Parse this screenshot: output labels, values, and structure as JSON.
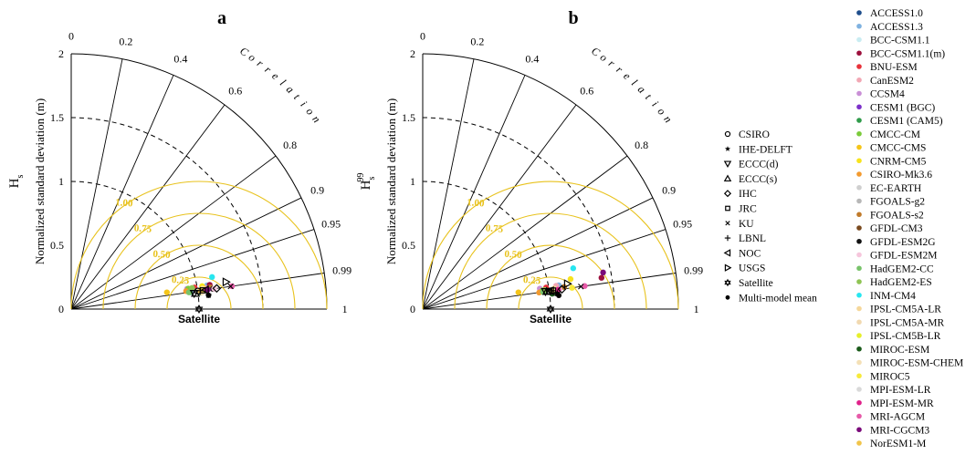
{
  "chart_data": [
    {
      "type": "taylor-diagram",
      "panel_label": "a",
      "ylabel": "Normalized standard deviation (m)",
      "variable_label": "H",
      "variable_sub": "s",
      "variable_sup": "",
      "correlation_label": "Correlation",
      "reference_label": "Satellite",
      "std_ticks": [
        "0",
        "0.5",
        "1",
        "1.5",
        "2"
      ],
      "corr_ticks": [
        "0",
        "0.2",
        "0.4",
        "0.6",
        "0.8",
        "0.9",
        "0.95",
        "0.99",
        "1"
      ],
      "crmsd_labels": [
        "0.25",
        "0.50",
        "0.75",
        "1.00"
      ],
      "points": [
        {
          "model": "ACCESS1.0",
          "std": 1.05,
          "corr": 0.99
        },
        {
          "model": "ACCESS1.3",
          "std": 1.08,
          "corr": 0.985
        },
        {
          "model": "BCC-CSM1.1",
          "std": 1.0,
          "corr": 0.99
        },
        {
          "model": "BCC-CSM1.1(m)",
          "std": 1.1,
          "corr": 0.985
        },
        {
          "model": "BNU-ESM",
          "std": 0.98,
          "corr": 0.985
        },
        {
          "model": "CanESM2",
          "std": 1.06,
          "corr": 0.988
        },
        {
          "model": "CCSM4",
          "std": 0.92,
          "corr": 0.985
        },
        {
          "model": "CESM1 (BGC)",
          "std": 0.95,
          "corr": 0.99
        },
        {
          "model": "CESM1 (CAM5)",
          "std": 0.94,
          "corr": 0.99
        },
        {
          "model": "CMCC-CM",
          "std": 0.93,
          "corr": 0.985
        },
        {
          "model": "CMCC-CMS",
          "std": 0.76,
          "corr": 0.985
        },
        {
          "model": "CNRM-CM5",
          "std": 1.04,
          "corr": 0.985
        },
        {
          "model": "CSIRO-Mk3.6",
          "std": 0.91,
          "corr": 0.988
        },
        {
          "model": "EC-EARTH",
          "std": 1.02,
          "corr": 0.99
        },
        {
          "model": "FGOALS-g2",
          "std": 0.99,
          "corr": 0.99
        },
        {
          "model": "FGOALS-s2",
          "std": 1.1,
          "corr": 0.988
        },
        {
          "model": "GFDL-CM3",
          "std": 1.03,
          "corr": 0.99
        },
        {
          "model": "GFDL-ESM2G",
          "std": 1.12,
          "corr": 0.99
        },
        {
          "model": "GFDL-ESM2M",
          "std": 1.13,
          "corr": 0.99
        },
        {
          "model": "HadGEM2-CC",
          "std": 0.93,
          "corr": 0.99
        },
        {
          "model": "HadGEM2-ES",
          "std": 0.96,
          "corr": 0.985
        },
        {
          "model": "INM-CM4",
          "std": 1.13,
          "corr": 0.975
        },
        {
          "model": "IPSL-CM5A-LR",
          "std": 1.04,
          "corr": 0.988
        },
        {
          "model": "IPSL-CM5A-MR",
          "std": 1.05,
          "corr": 0.99
        },
        {
          "model": "IPSL-CM5B-LR",
          "std": 1.01,
          "corr": 0.99
        },
        {
          "model": "MIROC-ESM",
          "std": 1.02,
          "corr": 0.992
        },
        {
          "model": "MIROC-ESM-CHEM",
          "std": 1.03,
          "corr": 0.992
        },
        {
          "model": "MIROC5",
          "std": 1.06,
          "corr": 0.99
        },
        {
          "model": "MPI-ESM-LR",
          "std": 1.0,
          "corr": 0.99
        },
        {
          "model": "MPI-ESM-MR",
          "std": 1.07,
          "corr": 0.99
        },
        {
          "model": "MRI-AGCM",
          "std": 1.27,
          "corr": 0.99
        },
        {
          "model": "MRI-CGCM3",
          "std": 1.08,
          "corr": 0.99
        },
        {
          "model": "NorESM1-M",
          "std": 1.02,
          "corr": 0.99
        }
      ],
      "products": [
        {
          "name": "CSIRO",
          "std": 1.0,
          "corr": 0.99
        },
        {
          "name": "IHE-DELFT",
          "std": 1.08,
          "corr": 0.995
        },
        {
          "name": "ECCC(d)",
          "std": 0.97,
          "corr": 0.992
        },
        {
          "name": "ECCC(s)",
          "std": 0.98,
          "corr": 0.992
        },
        {
          "name": "IHC",
          "std": 1.15,
          "corr": 0.99
        },
        {
          "name": "JRC",
          "std": 1.04,
          "corr": 0.99
        },
        {
          "name": "KU",
          "std": 1.26,
          "corr": 0.99
        },
        {
          "name": "LBNL",
          "std": 1.02,
          "corr": 0.99
        },
        {
          "name": "NOC",
          "std": 1.06,
          "corr": 0.99
        },
        {
          "name": "USGS",
          "std": 1.23,
          "corr": 0.985
        },
        {
          "name": "Satellite",
          "std": 1.0,
          "corr": 1.0
        },
        {
          "name": "Multi-model mean",
          "std": 1.08,
          "corr": 0.995
        }
      ]
    },
    {
      "type": "taylor-diagram",
      "panel_label": "b",
      "ylabel": "Normalized standard deviation (m)",
      "variable_label": "H",
      "variable_sub": "s",
      "variable_sup": "99",
      "correlation_label": "Correlation",
      "reference_label": "Satellite",
      "std_ticks": [
        "0",
        "0.5",
        "1",
        "1.5",
        "2"
      ],
      "corr_ticks": [
        "0",
        "0.2",
        "0.4",
        "0.6",
        "0.8",
        "0.9",
        "0.95",
        "0.99",
        "1"
      ],
      "crmsd_labels": [
        "0.25",
        "0.50",
        "0.75",
        "1.00"
      ],
      "points": [
        {
          "model": "ACCESS1.0",
          "std": 1.05,
          "corr": 0.99
        },
        {
          "model": "ACCESS1.3",
          "std": 1.08,
          "corr": 0.985
        },
        {
          "model": "BCC-CSM1.1",
          "std": 1.0,
          "corr": 0.99
        },
        {
          "model": "BCC-CSM1.1(m)",
          "std": 1.42,
          "corr": 0.985
        },
        {
          "model": "BNU-ESM",
          "std": 0.98,
          "corr": 0.985
        },
        {
          "model": "CanESM2",
          "std": 1.06,
          "corr": 0.985
        },
        {
          "model": "CCSM4",
          "std": 0.93,
          "corr": 0.985
        },
        {
          "model": "CESM1 (BGC)",
          "std": 0.97,
          "corr": 0.99
        },
        {
          "model": "CESM1 (CAM5)",
          "std": 0.96,
          "corr": 0.99
        },
        {
          "model": "CMCC-CM",
          "std": 0.95,
          "corr": 0.988
        },
        {
          "model": "CMCC-CMS",
          "std": 0.76,
          "corr": 0.985
        },
        {
          "model": "CNRM-CM5",
          "std": 1.18,
          "corr": 0.98
        },
        {
          "model": "CSIRO-Mk3.6",
          "std": 0.92,
          "corr": 0.99
        },
        {
          "model": "EC-EARTH",
          "std": 1.02,
          "corr": 0.99
        },
        {
          "model": "FGOALS-g2",
          "std": 1.0,
          "corr": 0.99
        },
        {
          "model": "FGOALS-s2",
          "std": 1.12,
          "corr": 0.988
        },
        {
          "model": "GFDL-CM3",
          "std": 1.03,
          "corr": 0.99
        },
        {
          "model": "GFDL-ESM2G",
          "std": 1.05,
          "corr": 0.993
        },
        {
          "model": "GFDL-ESM2M",
          "std": 1.08,
          "corr": 0.99
        },
        {
          "model": "HadGEM2-CC",
          "std": 0.95,
          "corr": 0.99
        },
        {
          "model": "HadGEM2-ES",
          "std": 0.97,
          "corr": 0.988
        },
        {
          "model": "INM-CM4",
          "std": 1.22,
          "corr": 0.965
        },
        {
          "model": "IPSL-CM5A-LR",
          "std": 1.04,
          "corr": 0.988
        },
        {
          "model": "IPSL-CM5A-MR",
          "std": 1.05,
          "corr": 0.99
        },
        {
          "model": "IPSL-CM5B-LR",
          "std": 1.01,
          "corr": 0.99
        },
        {
          "model": "MIROC-ESM",
          "std": 1.02,
          "corr": 0.993
        },
        {
          "model": "MIROC-ESM-CHEM",
          "std": 1.04,
          "corr": 0.99
        },
        {
          "model": "MIROC5",
          "std": 1.18,
          "corr": 0.99
        },
        {
          "model": "MPI-ESM-LR",
          "std": 1.0,
          "corr": 0.99
        },
        {
          "model": "MPI-ESM-MR",
          "std": 1.07,
          "corr": 0.99
        },
        {
          "model": "MRI-AGCM",
          "std": 1.28,
          "corr": 0.99
        },
        {
          "model": "MRI-CGCM3",
          "std": 1.44,
          "corr": 0.98
        },
        {
          "model": "NorESM1-M",
          "std": 1.02,
          "corr": 0.99
        }
      ],
      "products": [
        {
          "name": "CSIRO",
          "std": 1.0,
          "corr": 0.99
        },
        {
          "name": "IHE-DELFT",
          "std": 1.06,
          "corr": 0.993
        },
        {
          "name": "ECCC(d)",
          "std": 0.97,
          "corr": 0.99
        },
        {
          "name": "ECCC(s)",
          "std": 0.98,
          "corr": 0.99
        },
        {
          "name": "IHC",
          "std": 1.1,
          "corr": 0.99
        },
        {
          "name": "JRC",
          "std": 1.03,
          "corr": 0.99
        },
        {
          "name": "KU",
          "std": 1.25,
          "corr": 0.99
        },
        {
          "name": "LBNL",
          "std": 1.02,
          "corr": 0.99
        },
        {
          "name": "NOC",
          "std": 1.01,
          "corr": 0.99
        },
        {
          "name": "USGS",
          "std": 1.15,
          "corr": 0.985
        },
        {
          "name": "Satellite",
          "std": 1.0,
          "corr": 1.0
        },
        {
          "name": "Multi-model mean",
          "std": 1.07,
          "corr": 0.995
        }
      ]
    }
  ],
  "legend_products": [
    {
      "label": "CSIRO",
      "symbol": "circle-open"
    },
    {
      "label": "IHE-DELFT",
      "symbol": "star"
    },
    {
      "label": "ECCC(d)",
      "symbol": "triangle-down"
    },
    {
      "label": "ECCC(s)",
      "symbol": "triangle-up"
    },
    {
      "label": "IHC",
      "symbol": "diamond"
    },
    {
      "label": "JRC",
      "symbol": "square"
    },
    {
      "label": "KU",
      "symbol": "x"
    },
    {
      "label": "LBNL",
      "symbol": "plus"
    },
    {
      "label": "NOC",
      "symbol": "triangle-left"
    },
    {
      "label": "USGS",
      "symbol": "triangle-right"
    },
    {
      "label": "Satellite",
      "symbol": "hexagram"
    },
    {
      "label": "Multi-model mean",
      "symbol": "dot"
    }
  ],
  "legend_models": [
    {
      "label": "ACCESS1.0",
      "color": "#1f4e8c"
    },
    {
      "label": "ACCESS1.3",
      "color": "#7fb2e0"
    },
    {
      "label": "BCC-CSM1.1",
      "color": "#c9ecf2"
    },
    {
      "label": "BCC-CSM1.1(m)",
      "color": "#9c0f3c"
    },
    {
      "label": "BNU-ESM",
      "color": "#e8323a"
    },
    {
      "label": "CanESM2",
      "color": "#f2a7b4"
    },
    {
      "label": "CCSM4",
      "color": "#c98fd6"
    },
    {
      "label": "CESM1 (BGC)",
      "color": "#7b2fc9"
    },
    {
      "label": "CESM1 (CAM5)",
      "color": "#2f9b4a"
    },
    {
      "label": "CMCC-CM",
      "color": "#7acb3a"
    },
    {
      "label": "CMCC-CMS",
      "color": "#f5c518"
    },
    {
      "label": "CNRM-CM5",
      "color": "#f7e31c"
    },
    {
      "label": "CSIRO-Mk3.6",
      "color": "#f39a2e"
    },
    {
      "label": "EC-EARTH",
      "color": "#cfcfcf"
    },
    {
      "label": "FGOALS-g2",
      "color": "#b7b7b7"
    },
    {
      "label": "FGOALS-s2",
      "color": "#c07a2a"
    },
    {
      "label": "GFDL-CM3",
      "color": "#7a4a1e"
    },
    {
      "label": "GFDL-ESM2G",
      "color": "#111111"
    },
    {
      "label": "GFDL-ESM2M",
      "color": "#f6c6dc"
    },
    {
      "label": "HadGEM2-CC",
      "color": "#78c36a"
    },
    {
      "label": "HadGEM2-ES",
      "color": "#8fc454"
    },
    {
      "label": "INM-CM4",
      "color": "#27e6f0"
    },
    {
      "label": "IPSL-CM5A-LR",
      "color": "#f5d79a"
    },
    {
      "label": "IPSL-CM5A-MR",
      "color": "#f1d9b0"
    },
    {
      "label": "IPSL-CM5B-LR",
      "color": "#e6ef2a"
    },
    {
      "label": "MIROC-ESM",
      "color": "#1a5a1a"
    },
    {
      "label": "MIROC-ESM-CHEM",
      "color": "#f4e0b6"
    },
    {
      "label": "MIROC5",
      "color": "#f7ea3a"
    },
    {
      "label": "MPI-ESM-LR",
      "color": "#d9d9d9"
    },
    {
      "label": "MPI-ESM-MR",
      "color": "#e0208a"
    },
    {
      "label": "MRI-AGCM",
      "color": "#e65aa8"
    },
    {
      "label": "MRI-CGCM3",
      "color": "#7a0a7a"
    },
    {
      "label": "NorESM1-M",
      "color": "#f1c44a"
    }
  ],
  "colors": {
    "crmsd": "#e8c21c",
    "axis": "#000000"
  }
}
